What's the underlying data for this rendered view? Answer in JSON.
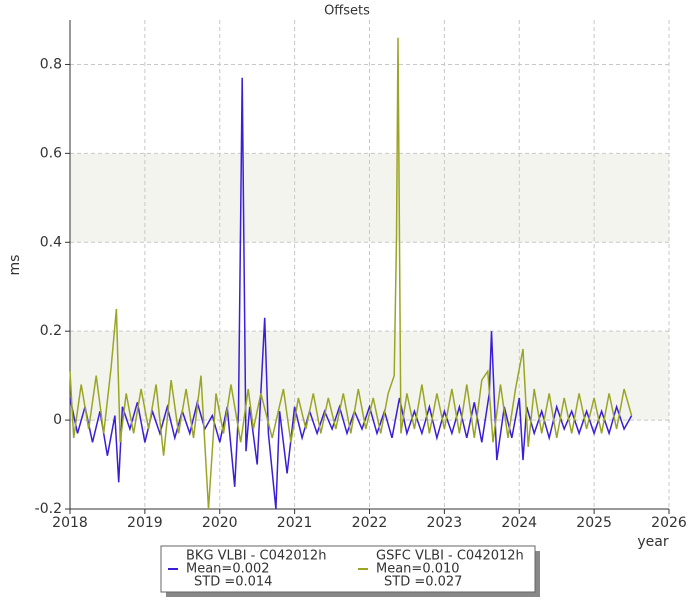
{
  "chart_data": {
    "type": "line",
    "title": "Offsets",
    "x_label": "year",
    "y_label": "ms",
    "xlim": [
      2018,
      2026
    ],
    "ylim": [
      -0.2,
      0.9
    ],
    "xticks": [
      2018,
      2019,
      2020,
      2021,
      2022,
      2023,
      2024,
      2025,
      2026
    ],
    "yticks": [
      -0.2,
      0,
      0.2,
      0.4,
      0.6,
      0.8
    ],
    "grid": true,
    "series": [
      {
        "name": "BKG VLBI - C042012h",
        "mean_label": "Mean=0.002",
        "std_label": "STD =0.014",
        "color": "#3a1ed8",
        "x": [
          2018.0,
          2018.1,
          2018.2,
          2018.3,
          2018.4,
          2018.5,
          2018.6,
          2018.65,
          2018.7,
          2018.8,
          2018.9,
          2019.0,
          2019.1,
          2019.2,
          2019.3,
          2019.4,
          2019.5,
          2019.6,
          2019.7,
          2019.8,
          2019.9,
          2020.0,
          2020.1,
          2020.2,
          2020.25,
          2020.3,
          2020.35,
          2020.4,
          2020.5,
          2020.6,
          2020.65,
          2020.75,
          2020.8,
          2020.9,
          2021.0,
          2021.1,
          2021.2,
          2021.3,
          2021.4,
          2021.5,
          2021.6,
          2021.7,
          2021.8,
          2021.9,
          2022.0,
          2022.1,
          2022.2,
          2022.3,
          2022.4,
          2022.5,
          2022.6,
          2022.7,
          2022.8,
          2022.9,
          2023.0,
          2023.1,
          2023.2,
          2023.3,
          2023.4,
          2023.5,
          2023.6,
          2023.63,
          2023.7,
          2023.8,
          2023.9,
          2024.0,
          2024.05,
          2024.1,
          2024.2,
          2024.3,
          2024.4,
          2024.5,
          2024.6,
          2024.7,
          2024.8,
          2024.9,
          2025.0,
          2025.1,
          2025.2,
          2025.3,
          2025.4,
          2025.5
        ],
        "values": [
          0.05,
          -0.03,
          0.03,
          -0.05,
          0.02,
          -0.08,
          0.01,
          -0.14,
          0.03,
          -0.02,
          0.04,
          -0.05,
          0.02,
          -0.03,
          0.03,
          -0.04,
          0.02,
          -0.03,
          0.04,
          -0.02,
          0.01,
          -0.05,
          0.03,
          -0.15,
          0.02,
          0.77,
          -0.07,
          0.03,
          -0.1,
          0.23,
          -0.03,
          -0.2,
          0.02,
          -0.12,
          0.03,
          -0.04,
          0.02,
          -0.03,
          0.02,
          -0.02,
          0.03,
          -0.03,
          0.02,
          -0.02,
          0.03,
          -0.03,
          0.02,
          -0.04,
          0.05,
          -0.03,
          0.02,
          -0.03,
          0.03,
          -0.04,
          0.02,
          -0.03,
          0.03,
          -0.04,
          0.04,
          -0.05,
          0.06,
          0.2,
          -0.09,
          0.03,
          -0.04,
          0.05,
          -0.09,
          0.03,
          -0.03,
          0.02,
          -0.04,
          0.03,
          -0.02,
          0.02,
          -0.03,
          0.02,
          -0.03,
          0.02,
          -0.03,
          0.03,
          -0.02,
          0.01
        ]
      },
      {
        "name": "GSFC VLBI - C042012h",
        "mean_label": "Mean=0.010",
        "std_label": "STD =0.027",
        "color": "#9aa526",
        "x": [
          2018.0,
          2018.05,
          2018.15,
          2018.25,
          2018.35,
          2018.45,
          2018.55,
          2018.62,
          2018.67,
          2018.75,
          2018.85,
          2018.95,
          2019.05,
          2019.15,
          2019.25,
          2019.35,
          2019.45,
          2019.55,
          2019.65,
          2019.75,
          2019.85,
          2019.95,
          2020.05,
          2020.15,
          2020.28,
          2020.38,
          2020.45,
          2020.55,
          2020.7,
          2020.85,
          2020.95,
          2021.05,
          2021.15,
          2021.25,
          2021.35,
          2021.45,
          2021.55,
          2021.65,
          2021.75,
          2021.85,
          2021.95,
          2022.05,
          2022.15,
          2022.25,
          2022.33,
          2022.36,
          2022.38,
          2022.42,
          2022.5,
          2022.6,
          2022.7,
          2022.8,
          2022.9,
          2023.0,
          2023.1,
          2023.2,
          2023.3,
          2023.4,
          2023.5,
          2023.58,
          2023.65,
          2023.75,
          2023.85,
          2023.95,
          2024.05,
          2024.12,
          2024.2,
          2024.3,
          2024.4,
          2024.5,
          2024.6,
          2024.7,
          2024.8,
          2024.9,
          2025.0,
          2025.1,
          2025.2,
          2025.3,
          2025.4,
          2025.5
        ],
        "values": [
          0.11,
          -0.04,
          0.08,
          -0.02,
          0.1,
          -0.03,
          0.12,
          0.25,
          -0.05,
          0.06,
          -0.03,
          0.07,
          -0.02,
          0.08,
          -0.08,
          0.09,
          -0.03,
          0.07,
          -0.04,
          0.1,
          -0.2,
          0.06,
          -0.03,
          0.08,
          -0.05,
          0.07,
          -0.02,
          0.06,
          -0.04,
          0.07,
          -0.05,
          0.05,
          -0.02,
          0.06,
          -0.03,
          0.05,
          -0.02,
          0.06,
          -0.03,
          0.07,
          -0.02,
          0.05,
          -0.03,
          0.06,
          0.1,
          0.41,
          0.86,
          -0.03,
          0.06,
          -0.02,
          0.08,
          -0.03,
          0.06,
          -0.02,
          0.07,
          -0.03,
          0.08,
          -0.04,
          0.09,
          0.11,
          -0.05,
          0.08,
          -0.04,
          0.07,
          0.16,
          -0.06,
          0.07,
          -0.03,
          0.06,
          -0.04,
          0.05,
          -0.03,
          0.06,
          -0.02,
          0.05,
          -0.03,
          0.06,
          -0.02,
          0.07,
          0.01
        ]
      }
    ]
  }
}
